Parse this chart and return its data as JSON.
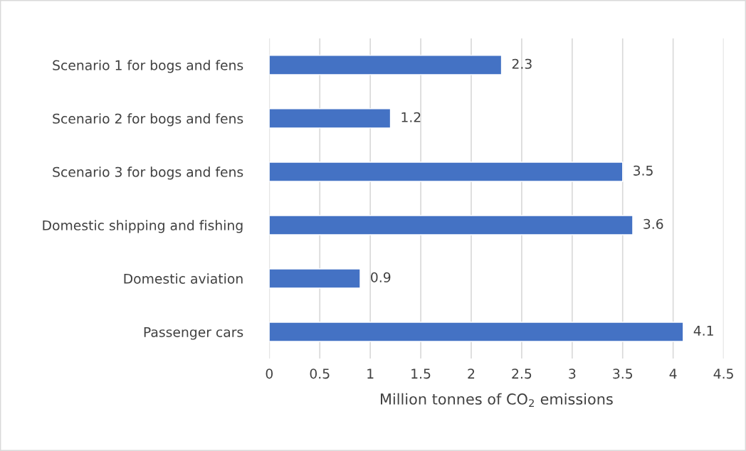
{
  "chart_data": {
    "type": "bar",
    "orientation": "horizontal",
    "categories": [
      "Scenario 1 for bogs and fens",
      "Scenario 2 for bogs and fens",
      "Scenario 3 for bogs and fens",
      "Domestic shipping and fishing",
      "Domestic aviation",
      "Passenger cars"
    ],
    "values": [
      2.3,
      1.2,
      3.5,
      3.6,
      0.9,
      4.1
    ],
    "color": "#4472c4",
    "xlim": [
      0,
      4.5
    ],
    "xticks": [
      0,
      0.5,
      1,
      1.5,
      2,
      2.5,
      3,
      3.5,
      4,
      4.5
    ],
    "xlabel": "Million tonnes of CO$_{2}$ emissions",
    "grid": "x",
    "data_labels": true
  }
}
